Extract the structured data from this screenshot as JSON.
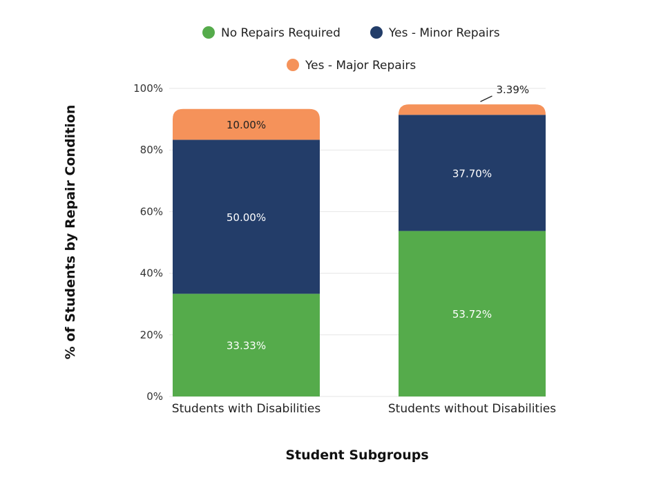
{
  "chart_data": {
    "type": "bar",
    "stacked": true,
    "title": "",
    "xlabel": "Student Subgroups",
    "ylabel": "% of Students by Repair Condition",
    "ylim": [
      0,
      100
    ],
    "yticks": [
      "0%",
      "20%",
      "40%",
      "60%",
      "80%",
      "100%"
    ],
    "ytick_values": [
      0,
      20,
      40,
      60,
      80,
      100
    ],
    "grid": true,
    "legend_position": "top",
    "categories": [
      "Students with Disabilities",
      "Students without Disabilities"
    ],
    "series": [
      {
        "name": "No Repairs Required",
        "color": "#55ab4b",
        "label_color": "#ffffff",
        "values": [
          33.33,
          53.72
        ],
        "labels": [
          "33.33%",
          "53.72%"
        ]
      },
      {
        "name": "Yes - Minor Repairs",
        "color": "#233d69",
        "label_color": "#ffffff",
        "values": [
          50.0,
          37.7
        ],
        "labels": [
          "50.00%",
          "37.70%"
        ]
      },
      {
        "name": "Yes - Major Repairs",
        "color": "#f5925a",
        "label_color": "#222222",
        "values": [
          10.0,
          3.39
        ],
        "labels": [
          "10.00%",
          "3.39%"
        ]
      }
    ]
  }
}
